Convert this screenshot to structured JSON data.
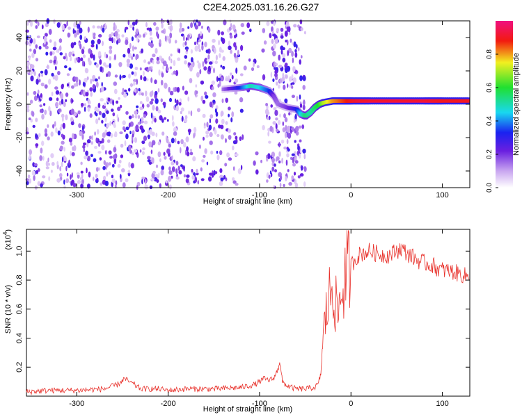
{
  "title": "C2E4.2025.031.16.26.G27",
  "chart_data": [
    {
      "type": "heatmap",
      "xlabel": "Height of straight line (km)",
      "ylabel": "Frequency (Hz)",
      "xlim": [
        -355,
        130
      ],
      "ylim": [
        -50,
        50
      ],
      "xticks": [
        -300,
        -200,
        -100,
        0,
        100
      ],
      "yticks": [
        -40,
        -20,
        0,
        20,
        40
      ],
      "colorbar": {
        "label": "Normalized spectral amplitude",
        "ticks": [
          0.0,
          0.2,
          0.4,
          0.6,
          0.8
        ],
        "range": [
          0,
          1
        ]
      },
      "noise_region_x": [
        -355,
        -50
      ],
      "signal_trace": {
        "x": [
          -140,
          -120,
          -110,
          -100,
          -90,
          -85,
          -80,
          -70,
          -60,
          -55,
          -50,
          -45,
          -40,
          -35,
          -30,
          -20,
          -10,
          0,
          20,
          50,
          80,
          100,
          130
        ],
        "y": [
          9,
          10,
          11,
          10,
          8,
          5,
          0,
          -2,
          -3,
          -6,
          -7,
          -5,
          -2,
          0,
          1,
          2,
          2,
          2,
          2,
          2,
          2,
          2,
          2
        ],
        "amplitude": [
          0.15,
          0.35,
          0.5,
          0.45,
          0.35,
          0.2,
          0.15,
          0.2,
          0.3,
          0.45,
          0.55,
          0.5,
          0.55,
          0.6,
          0.7,
          0.8,
          0.85,
          0.9,
          0.95,
          0.95,
          0.95,
          0.9,
          0.9
        ]
      }
    },
    {
      "type": "line",
      "xlabel": "Height of straight line (km)",
      "ylabel": "SNR (10 * v/v)",
      "yscale_label": "(x10",
      "yscale_exp": "4",
      "xlim": [
        -355,
        130
      ],
      "ylim": [
        0,
        1.15
      ],
      "xticks": [
        -300,
        -200,
        -100,
        0,
        100
      ],
      "yticks": [
        0.2,
        0.4,
        0.6,
        0.8,
        1.0
      ],
      "series": [
        {
          "color": "#e8302a",
          "x": [
            -355,
            -330,
            -300,
            -270,
            -255,
            -248,
            -240,
            -230,
            -210,
            -200,
            -180,
            -150,
            -120,
            -105,
            -100,
            -95,
            -90,
            -85,
            -80,
            -78,
            -75,
            -70,
            -60,
            -50,
            -40,
            -36,
            -33,
            -30,
            -25,
            -20,
            -15,
            -10,
            -5,
            0,
            5,
            10,
            20,
            30,
            40,
            50,
            55,
            60,
            70,
            75,
            80,
            90,
            95,
            100,
            110,
            120,
            130
          ],
          "y": [
            0.03,
            0.04,
            0.04,
            0.05,
            0.08,
            0.12,
            0.09,
            0.05,
            0.05,
            0.04,
            0.05,
            0.05,
            0.06,
            0.08,
            0.1,
            0.12,
            0.11,
            0.12,
            0.18,
            0.24,
            0.1,
            0.07,
            0.05,
            0.05,
            0.06,
            0.08,
            0.15,
            0.45,
            0.65,
            0.78,
            0.55,
            0.72,
            0.85,
            0.9,
            0.95,
            0.98,
            1.0,
            0.98,
            0.97,
            1.0,
            1.02,
            0.99,
            0.95,
            0.93,
            0.92,
            0.9,
            0.88,
            0.87,
            0.86,
            0.84,
            0.82
          ]
        }
      ]
    }
  ]
}
